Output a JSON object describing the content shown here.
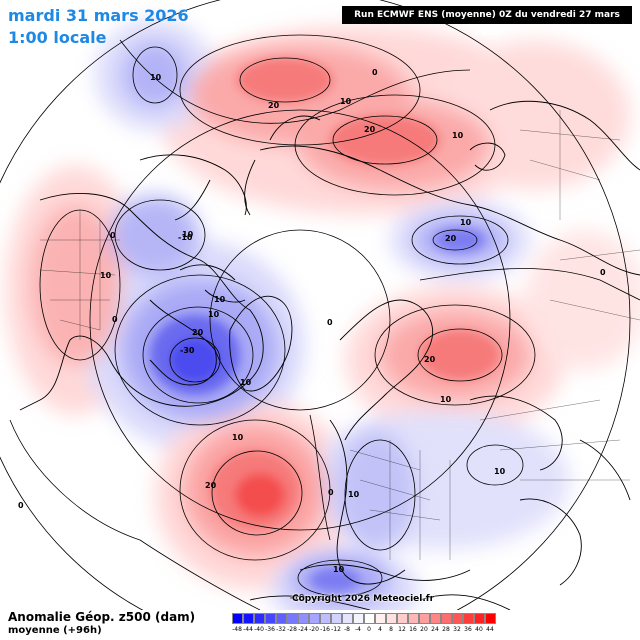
{
  "header": {
    "date": "mardi 31 mars 2026",
    "time": "1:00 locale",
    "run": "Run ECMWF ENS (moyenne) 0Z du vendredi 27 mars 2026"
  },
  "footer": {
    "variable": "Anomalie Géop. z500 (dam)",
    "subtitle": "moyenne     (+96h)",
    "copyright": "Copyright 2026 Meteociel.fr"
  },
  "legend": {
    "values": [
      "-48",
      "-44",
      "-40",
      "-36",
      "-32",
      "-28",
      "-24",
      "-20",
      "-16",
      "-12",
      "-8",
      "-4",
      "0",
      "4",
      "8",
      "12",
      "16",
      "20",
      "24",
      "28",
      "32",
      "36",
      "40",
      "44"
    ],
    "colors": [
      "#0000ff",
      "#1414ff",
      "#2c2cff",
      "#4646ff",
      "#6060ff",
      "#7878ff",
      "#8f8fff",
      "#a6a6ff",
      "#bdbdff",
      "#d2d2ff",
      "#e4e4ff",
      "#f4f4ff",
      "#ffffff",
      "#fff0f0",
      "#ffe0e0",
      "#ffcccc",
      "#ffb6b6",
      "#ff9e9e",
      "#ff8686",
      "#ff6e6e",
      "#ff5656",
      "#ff3c3c",
      "#ff2222",
      "#ff0000"
    ]
  },
  "anomalies": [
    {
      "id": "aleutian-positive",
      "sign": "positive",
      "peak": 20,
      "color": "#f44d4d"
    },
    {
      "id": "siberia-positive",
      "sign": "positive",
      "peak": 20,
      "color": "#f44d4d"
    },
    {
      "id": "western-na-positive",
      "sign": "positive",
      "peak": 10,
      "color": "#f67a7a"
    },
    {
      "id": "hudson-bay-negative",
      "sign": "negative",
      "peak": -30,
      "color": "#4b4bef"
    },
    {
      "id": "pacific-negative",
      "sign": "negative",
      "peak": -10,
      "color": "#7d7df2"
    },
    {
      "id": "bering-negative",
      "sign": "negative",
      "peak": -20,
      "color": "#6a6af0"
    },
    {
      "id": "scandinavia-positive",
      "sign": "positive",
      "peak": 20,
      "color": "#f44d4d"
    },
    {
      "id": "atlantic-positive",
      "sign": "positive",
      "peak": 20,
      "color": "#f44d4d"
    },
    {
      "id": "europe-negative",
      "sign": "negative",
      "peak": -10,
      "color": "#8a8af0"
    },
    {
      "id": "mediterranean-negative",
      "sign": "negative",
      "peak": -10,
      "color": "#7d7df2"
    }
  ],
  "contour_labels": [
    "10",
    "20",
    "10",
    "0",
    "10",
    "20",
    "10",
    "0",
    "10",
    "20",
    "10",
    "10",
    "0",
    "10",
    "-10",
    "20",
    "-30",
    "10",
    "10",
    "20",
    "10",
    "0",
    "10",
    "20",
    "10",
    "0",
    "10",
    "-10",
    "0",
    "0"
  ]
}
